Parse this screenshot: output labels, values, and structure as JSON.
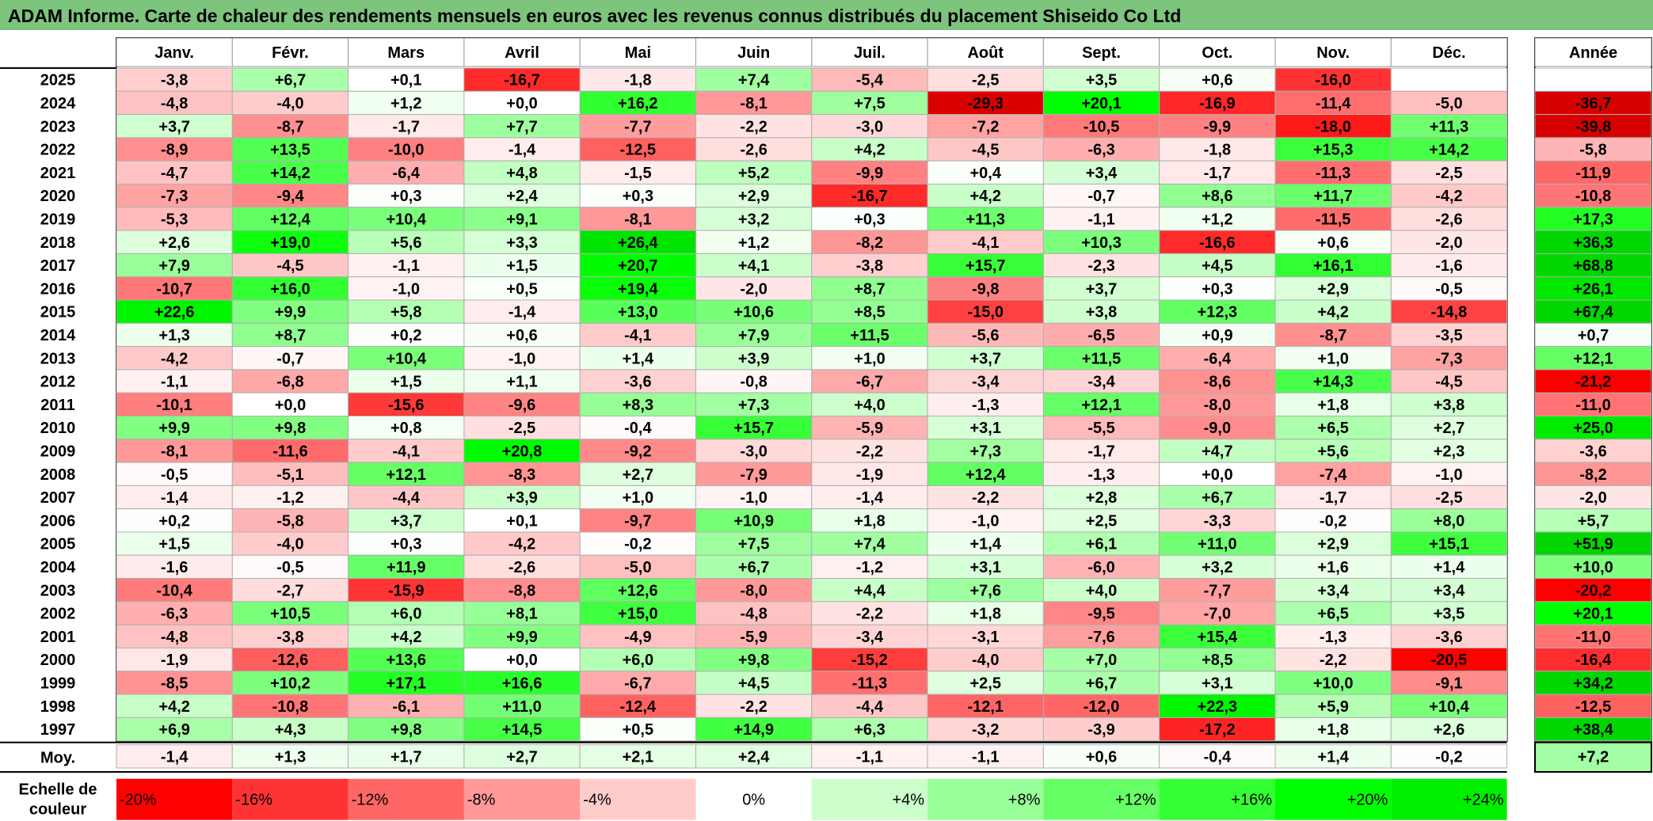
{
  "title": "ADAM Informe. Carte de chaleur des rendements mensuels en euros avec les revenus connus distribués du placement Shiseido Co Ltd",
  "chart_data": {
    "type": "heatmap",
    "title": "ADAM Informe. Carte de chaleur des rendements mensuels en euros avec les revenus connus distribués du placement Shiseido Co Ltd",
    "months": [
      "Janv.",
      "Févr.",
      "Mars",
      "Avril",
      "Mai",
      "Juin",
      "Juil.",
      "Août",
      "Sept.",
      "Oct.",
      "Nov.",
      "Déc."
    ],
    "annual_header": "Année",
    "rows": [
      {
        "year": "2025",
        "values": [
          "-3,8",
          "+6,7",
          "+0,1",
          "-16,7",
          "-1,8",
          "+7,4",
          "-5,4",
          "-2,5",
          "+3,5",
          "+0,6",
          "-16,0",
          ""
        ],
        "annual": ""
      },
      {
        "year": "2024",
        "values": [
          "-4,8",
          "-4,0",
          "+1,2",
          "+0,0",
          "+16,2",
          "-8,1",
          "+7,5",
          "-29,3",
          "+20,1",
          "-16,9",
          "-11,4",
          "-5,0"
        ],
        "annual": "-36,7"
      },
      {
        "year": "2023",
        "values": [
          "+3,7",
          "-8,7",
          "-1,7",
          "+7,7",
          "-7,7",
          "-2,2",
          "-3,0",
          "-7,2",
          "-10,5",
          "-9,9",
          "-18,0",
          "+11,3"
        ],
        "annual": "-39,8"
      },
      {
        "year": "2022",
        "values": [
          "-8,9",
          "+13,5",
          "-10,0",
          "-1,4",
          "-12,5",
          "-2,6",
          "+4,2",
          "-4,5",
          "-6,3",
          "-1,8",
          "+15,3",
          "+14,2"
        ],
        "annual": "-5,8"
      },
      {
        "year": "2021",
        "values": [
          "-4,7",
          "+14,2",
          "-6,4",
          "+4,8",
          "-1,5",
          "+5,2",
          "-9,9",
          "+0,4",
          "+3,4",
          "-1,7",
          "-11,3",
          "-2,5"
        ],
        "annual": "-11,9"
      },
      {
        "year": "2020",
        "values": [
          "-7,3",
          "-9,4",
          "+0,3",
          "+2,4",
          "+0,3",
          "+2,9",
          "-16,7",
          "+4,2",
          "-0,7",
          "+8,6",
          "+11,7",
          "-4,2"
        ],
        "annual": "-10,8"
      },
      {
        "year": "2019",
        "values": [
          "-5,3",
          "+12,4",
          "+10,4",
          "+9,1",
          "-8,1",
          "+3,2",
          "+0,3",
          "+11,3",
          "-1,1",
          "+1,2",
          "-11,5",
          "-2,6"
        ],
        "annual": "+17,3"
      },
      {
        "year": "2018",
        "values": [
          "+2,6",
          "+19,0",
          "+5,6",
          "+3,3",
          "+26,4",
          "+1,2",
          "-8,2",
          "-4,1",
          "+10,3",
          "-16,6",
          "+0,6",
          "-2,0"
        ],
        "annual": "+36,3"
      },
      {
        "year": "2017",
        "values": [
          "+7,9",
          "-4,5",
          "-1,1",
          "+1,5",
          "+20,7",
          "+4,1",
          "-3,8",
          "+15,7",
          "-2,3",
          "+4,5",
          "+16,1",
          "-1,6"
        ],
        "annual": "+68,8"
      },
      {
        "year": "2016",
        "values": [
          "-10,7",
          "+16,0",
          "-1,0",
          "+0,5",
          "+19,4",
          "-2,0",
          "+8,7",
          "-9,8",
          "+3,7",
          "+0,3",
          "+2,9",
          "-0,5"
        ],
        "annual": "+26,1"
      },
      {
        "year": "2015",
        "values": [
          "+22,6",
          "+9,9",
          "+5,8",
          "-1,4",
          "+13,0",
          "+10,6",
          "+8,5",
          "-15,0",
          "+3,8",
          "+12,3",
          "+4,2",
          "-14,8"
        ],
        "annual": "+67,4"
      },
      {
        "year": "2014",
        "values": [
          "+1,3",
          "+8,7",
          "+0,2",
          "+0,6",
          "-4,1",
          "+7,9",
          "+11,5",
          "-5,6",
          "-6,5",
          "+0,9",
          "-8,7",
          "-3,5"
        ],
        "annual": "+0,7"
      },
      {
        "year": "2013",
        "values": [
          "-4,2",
          "-0,7",
          "+10,4",
          "-1,0",
          "+1,4",
          "+3,9",
          "+1,0",
          "+3,7",
          "+11,5",
          "-6,4",
          "+1,0",
          "-7,3"
        ],
        "annual": "+12,1"
      },
      {
        "year": "2012",
        "values": [
          "-1,1",
          "-6,8",
          "+1,5",
          "+1,1",
          "-3,6",
          "-0,8",
          "-6,7",
          "-3,4",
          "-3,4",
          "-8,6",
          "+14,3",
          "-4,5"
        ],
        "annual": "-21,2"
      },
      {
        "year": "2011",
        "values": [
          "-10,1",
          "+0,0",
          "-15,6",
          "-9,6",
          "+8,3",
          "+7,3",
          "+4,0",
          "-1,3",
          "+12,1",
          "-8,0",
          "+1,8",
          "+3,8"
        ],
        "annual": "-11,0"
      },
      {
        "year": "2010",
        "values": [
          "+9,9",
          "+9,8",
          "+0,8",
          "-2,5",
          "-0,4",
          "+15,7",
          "-5,9",
          "+3,1",
          "-5,5",
          "-9,0",
          "+6,5",
          "+2,7"
        ],
        "annual": "+25,0"
      },
      {
        "year": "2009",
        "values": [
          "-8,1",
          "-11,6",
          "-4,1",
          "+20,8",
          "-9,2",
          "-3,0",
          "-2,2",
          "+7,3",
          "-1,7",
          "+4,7",
          "+5,6",
          "+2,3"
        ],
        "annual": "-3,6"
      },
      {
        "year": "2008",
        "values": [
          "-0,5",
          "-5,1",
          "+12,1",
          "-8,3",
          "+2,7",
          "-7,9",
          "-1,9",
          "+12,4",
          "-1,3",
          "+0,0",
          "-7,4",
          "-1,0"
        ],
        "annual": "-8,2"
      },
      {
        "year": "2007",
        "values": [
          "-1,4",
          "-1,2",
          "-4,4",
          "+3,9",
          "+1,0",
          "-1,0",
          "-1,4",
          "-2,2",
          "+2,8",
          "+6,7",
          "-1,7",
          "-2,5"
        ],
        "annual": "-2,0"
      },
      {
        "year": "2006",
        "values": [
          "+0,2",
          "-5,8",
          "+3,7",
          "+0,1",
          "-9,7",
          "+10,9",
          "+1,8",
          "-1,0",
          "+2,5",
          "-3,3",
          "-0,2",
          "+8,0"
        ],
        "annual": "+5,7"
      },
      {
        "year": "2005",
        "values": [
          "+1,5",
          "-4,0",
          "+0,3",
          "-4,2",
          "-0,2",
          "+7,5",
          "+7,4",
          "+1,4",
          "+6,1",
          "+11,0",
          "+2,9",
          "+15,1"
        ],
        "annual": "+51,9"
      },
      {
        "year": "2004",
        "values": [
          "-1,6",
          "-0,5",
          "+11,9",
          "-2,6",
          "-5,0",
          "+6,7",
          "-1,2",
          "+3,1",
          "-6,0",
          "+3,2",
          "+1,6",
          "+1,4"
        ],
        "annual": "+10,0"
      },
      {
        "year": "2003",
        "values": [
          "-10,4",
          "-2,7",
          "-15,9",
          "-8,8",
          "+12,6",
          "-8,0",
          "+4,4",
          "+7,6",
          "+4,0",
          "-7,7",
          "+3,4",
          "+3,4"
        ],
        "annual": "-20,2"
      },
      {
        "year": "2002",
        "values": [
          "-6,3",
          "+10,5",
          "+6,0",
          "+8,1",
          "+15,0",
          "-4,8",
          "-2,2",
          "+1,8",
          "-9,5",
          "-7,0",
          "+6,5",
          "+3,5"
        ],
        "annual": "+20,1"
      },
      {
        "year": "2001",
        "values": [
          "-4,8",
          "-3,8",
          "+4,2",
          "+9,9",
          "-4,9",
          "-5,9",
          "-3,4",
          "-3,1",
          "-7,6",
          "+15,4",
          "-1,3",
          "-3,6"
        ],
        "annual": "-11,0"
      },
      {
        "year": "2000",
        "values": [
          "-1,9",
          "-12,6",
          "+13,6",
          "+0,0",
          "+6,0",
          "+9,8",
          "-15,2",
          "-4,0",
          "+7,0",
          "+8,5",
          "-2,2",
          "-20,5"
        ],
        "annual": "-16,4"
      },
      {
        "year": "1999",
        "values": [
          "-8,5",
          "+10,2",
          "+17,1",
          "+16,6",
          "-6,7",
          "+4,5",
          "-11,3",
          "+2,5",
          "+6,7",
          "+3,1",
          "+10,0",
          "-9,1"
        ],
        "annual": "+34,2"
      },
      {
        "year": "1998",
        "values": [
          "+4,2",
          "-10,8",
          "-6,1",
          "+11,0",
          "-12,4",
          "-2,2",
          "-4,4",
          "-12,1",
          "-12,0",
          "+22,3",
          "+5,9",
          "+10,4"
        ],
        "annual": "-12,5"
      },
      {
        "year": "1997",
        "values": [
          "+6,9",
          "+4,3",
          "+9,8",
          "+14,5",
          "+0,5",
          "+14,9",
          "+6,3",
          "-3,2",
          "-3,9",
          "-17,2",
          "+1,8",
          "+2,6"
        ],
        "annual": "+38,4"
      }
    ],
    "average": {
      "label": "Moy.",
      "values": [
        "-1,4",
        "+1,3",
        "+1,7",
        "+2,7",
        "+2,1",
        "+2,4",
        "-1,1",
        "-1,1",
        "+0,6",
        "-0,4",
        "+1,4",
        "-0,2"
      ],
      "annual": "+7,2"
    },
    "scale": {
      "label": "Echelle de couleur",
      "steps": [
        {
          "label": "-20%",
          "color": "#ff0000"
        },
        {
          "label": "-16%",
          "color": "#ff3333"
        },
        {
          "label": "-12%",
          "color": "#ff6666"
        },
        {
          "label": "-8%",
          "color": "#ff9999"
        },
        {
          "label": "-4%",
          "color": "#ffcccc"
        },
        {
          "label": "0%",
          "color": "#ffffff"
        },
        {
          "label": "+4%",
          "color": "#ccffcc"
        },
        {
          "label": "+8%",
          "color": "#99ff99"
        },
        {
          "label": "+12%",
          "color": "#66ff66"
        },
        {
          "label": "+16%",
          "color": "#33ff33"
        },
        {
          "label": "+20%",
          "color": "#00ff00"
        },
        {
          "label": "+24%",
          "color": "#00ee00"
        }
      ]
    },
    "colors": {
      "positive_max": "#00ff00",
      "negative_max": "#ff0000",
      "neutral": "#ffffff",
      "title_bar": "#7dc47d"
    }
  }
}
